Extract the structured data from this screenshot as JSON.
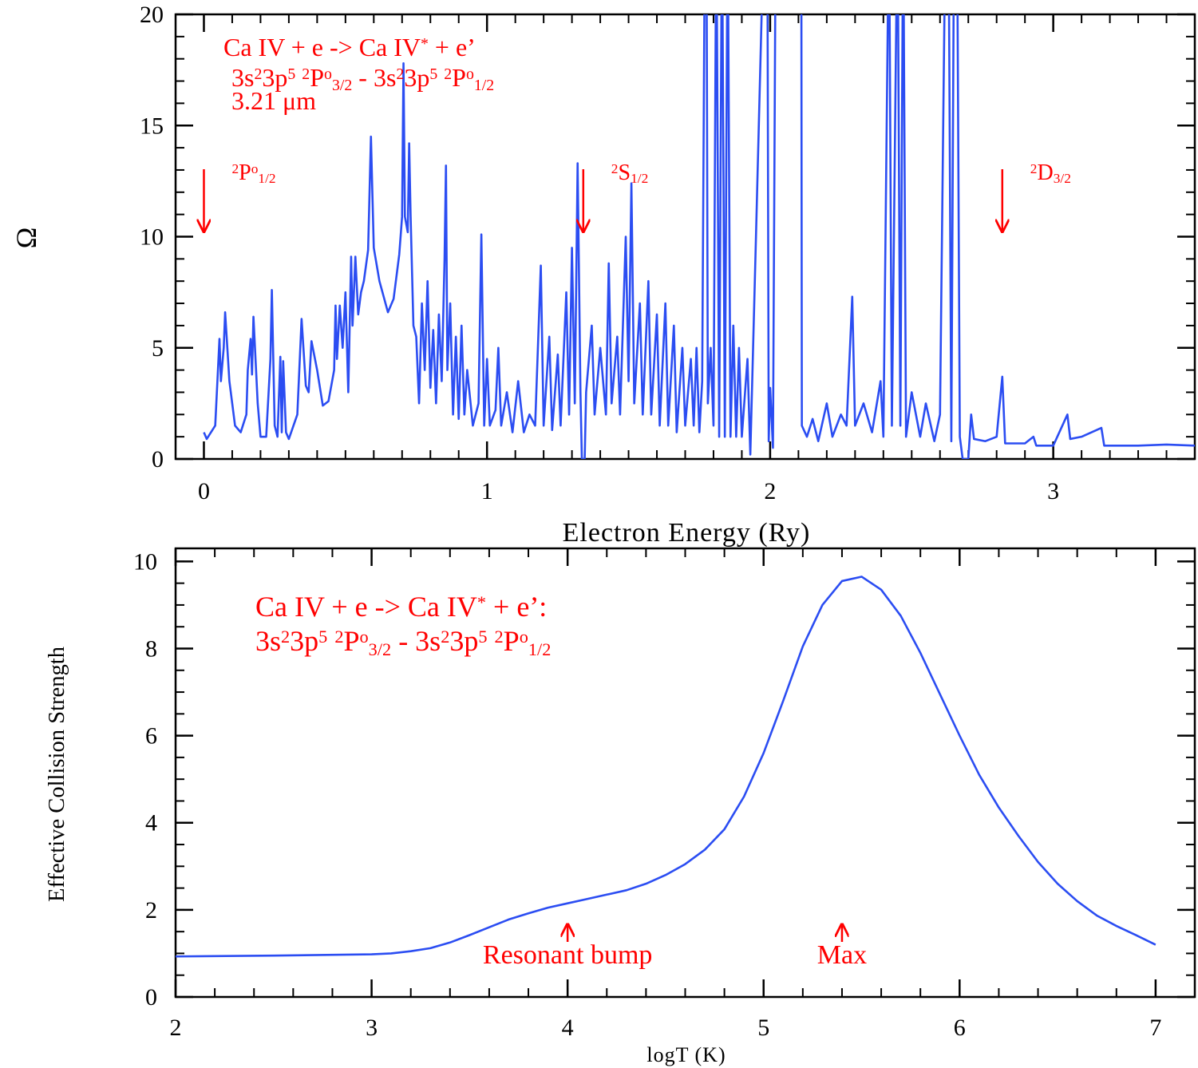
{
  "chart_data": [
    {
      "type": "line",
      "xlabel": "Electron Energy (Ry)",
      "ylabel": "Ω",
      "xlim": [
        -0.1,
        3.5
      ],
      "xticks": [
        0,
        1,
        2,
        3
      ],
      "minor_xtick_step": 0.1,
      "ylim": [
        0,
        20
      ],
      "yticks": [
        0,
        5,
        10,
        15,
        20
      ],
      "minor_ytick_step": 1,
      "color": "#2b4df2",
      "x": [
        0,
        0.01,
        0.04,
        0.055,
        0.06,
        0.07,
        0.075,
        0.09,
        0.11,
        0.13,
        0.15,
        0.155,
        0.165,
        0.17,
        0.175,
        0.19,
        0.2,
        0.22,
        0.235,
        0.24,
        0.25,
        0.26,
        0.27,
        0.275,
        0.28,
        0.29,
        0.3,
        0.33,
        0.345,
        0.36,
        0.37,
        0.38,
        0.4,
        0.42,
        0.44,
        0.46,
        0.465,
        0.47,
        0.48,
        0.49,
        0.5,
        0.51,
        0.52,
        0.525,
        0.535,
        0.545,
        0.555,
        0.565,
        0.58,
        0.59,
        0.6,
        0.62,
        0.65,
        0.67,
        0.69,
        0.7,
        0.705,
        0.71,
        0.72,
        0.725,
        0.73,
        0.74,
        0.75,
        0.76,
        0.77,
        0.78,
        0.79,
        0.8,
        0.81,
        0.82,
        0.83,
        0.84,
        0.85,
        0.855,
        0.86,
        0.87,
        0.88,
        0.89,
        0.9,
        0.91,
        0.92,
        0.93,
        0.95,
        0.97,
        0.98,
        0.99,
        1.0,
        1.01,
        1.03,
        1.04,
        1.05,
        1.07,
        1.09,
        1.11,
        1.13,
        1.15,
        1.17,
        1.19,
        1.2,
        1.22,
        1.23,
        1.25,
        1.26,
        1.28,
        1.29,
        1.3,
        1.31,
        1.32,
        1.33,
        1.335,
        1.345,
        1.35,
        1.37,
        1.38,
        1.4,
        1.42,
        1.43,
        1.44,
        1.46,
        1.47,
        1.49,
        1.5,
        1.51,
        1.52,
        1.54,
        1.55,
        1.57,
        1.58,
        1.6,
        1.61,
        1.63,
        1.64,
        1.66,
        1.67,
        1.69,
        1.7,
        1.72,
        1.73,
        1.74,
        1.75,
        1.76,
        1.77,
        1.775,
        1.78,
        1.79,
        1.8,
        1.81,
        1.82,
        1.83,
        1.84,
        1.85,
        1.86,
        1.87,
        1.88,
        1.89,
        1.9,
        1.92,
        1.93,
        1.95,
        1.98,
        1.99,
        1.995,
        2.0,
        2.01,
        2.02,
        2.11,
        2.112,
        2.13,
        2.15,
        2.17,
        2.2,
        2.22,
        2.25,
        2.27,
        2.29,
        2.3,
        2.33,
        2.36,
        2.39,
        2.4,
        2.42,
        2.43,
        2.45,
        2.46,
        2.47,
        2.48,
        2.5,
        2.53,
        2.55,
        2.58,
        2.6,
        2.62,
        2.63,
        2.64,
        2.65,
        2.66,
        2.67,
        2.68,
        2.7,
        2.71,
        2.72,
        2.76,
        2.8,
        2.82,
        2.83,
        2.9,
        2.93,
        2.94,
        3.0,
        3.05,
        3.06,
        3.1,
        3.17,
        3.18,
        3.3,
        3.4,
        3.5
      ],
      "values": [
        1.2,
        0.9,
        1.5,
        5.4,
        3.5,
        5.0,
        6.6,
        3.5,
        1.5,
        1.2,
        2.0,
        4.0,
        5.4,
        3.8,
        6.4,
        2.5,
        1.0,
        1.0,
        4.5,
        7.6,
        1.5,
        1.0,
        4.6,
        1.2,
        4.4,
        1.2,
        0.9,
        2.0,
        6.3,
        3.3,
        3.0,
        5.3,
        4.0,
        2.4,
        2.6,
        4.0,
        6.9,
        4.5,
        6.9,
        5.0,
        7.5,
        3.0,
        9.1,
        6.0,
        9.1,
        6.5,
        7.5,
        8.0,
        9.4,
        14.5,
        9.5,
        8.0,
        6.6,
        7.2,
        9.2,
        10.9,
        17.8,
        10.9,
        10.2,
        14.2,
        11.0,
        6.0,
        5.5,
        2.5,
        7.0,
        4.0,
        8.0,
        3.2,
        5.8,
        2.5,
        6.5,
        3.5,
        9.0,
        13.2,
        4.0,
        7.0,
        2.0,
        5.5,
        1.8,
        6.0,
        2.0,
        4.0,
        1.5,
        2.5,
        10.1,
        1.5,
        4.5,
        1.5,
        2.2,
        5.0,
        1.5,
        3.0,
        1.2,
        3.5,
        1.2,
        2.0,
        1.5,
        8.7,
        1.5,
        5.5,
        1.3,
        4.7,
        1.5,
        7.5,
        2.0,
        9.5,
        2.5,
        13.3,
        3.0,
        0,
        0,
        3.0,
        6.0,
        2.0,
        5.0,
        2.0,
        8.8,
        2.5,
        5.5,
        2.0,
        10.0,
        3.5,
        12.4,
        2.5,
        7.0,
        2.0,
        8.0,
        2.0,
        6.5,
        1.5,
        7.0,
        1.5,
        6.0,
        1.2,
        5.0,
        1.5,
        4.5,
        1.5,
        5.0,
        1.2,
        3.5,
        25,
        25,
        2.5,
        5.0,
        1.5,
        25,
        1.0,
        25,
        1.0,
        25,
        1.0,
        6.0,
        1.0,
        5.0,
        1.0,
        4.5,
        0.2,
        10,
        25,
        25,
        0.8,
        3.2,
        0.5,
        25,
        25,
        1.5,
        1.0,
        1.8,
        0.8,
        2.5,
        1.0,
        2.0,
        1.5,
        7.3,
        1.5,
        2.5,
        1.2,
        3.5,
        1.0,
        25,
        1.5,
        25,
        1.5,
        25,
        1.0,
        3.0,
        1.0,
        2.5,
        0.8,
        2.0,
        25,
        25,
        0.8,
        25,
        25,
        1.0,
        0,
        0,
        2.0,
        0.9,
        0.8,
        1.0,
        3.7,
        0.7,
        0.7,
        1.0,
        0.6,
        0.6,
        2.0,
        0.9,
        1.0,
        1.4,
        0.6,
        0.6,
        0.65,
        0.6
      ],
      "annotations": [
        {
          "segments": [
            {
              "text": "Ca IV + e -> Ca IV"
            },
            {
              "text": "*",
              "style": "sup"
            },
            {
              "text": " + e’"
            }
          ]
        },
        {
          "segments": [
            {
              "text": "3s"
            },
            {
              "text": "2",
              "style": "sup"
            },
            {
              "text": "3p"
            },
            {
              "text": "5",
              "style": "sup"
            },
            {
              "text": " "
            },
            {
              "text": "2",
              "style": "sup"
            },
            {
              "text": "P"
            },
            {
              "text": "o",
              "style": "sup"
            },
            {
              "text": "3/2",
              "style": "sub"
            },
            {
              "text": " - 3s"
            },
            {
              "text": "2",
              "style": "sup"
            },
            {
              "text": "3p"
            },
            {
              "text": "5",
              "style": "sup"
            },
            {
              "text": " "
            },
            {
              "text": "2",
              "style": "sup"
            },
            {
              "text": "P"
            },
            {
              "text": "o",
              "style": "sup"
            },
            {
              "text": "1/2",
              "style": "sub"
            }
          ]
        },
        {
          "segments": [
            {
              "text": "3.21 μm"
            }
          ]
        }
      ],
      "markers": [
        {
          "x": 0,
          "segments": [
            {
              "text": "2",
              "style": "sup"
            },
            {
              "text": "P"
            },
            {
              "text": "o",
              "style": "sup"
            },
            {
              "text": "1/2",
              "style": "sub"
            }
          ]
        },
        {
          "x": 1.34,
          "segments": [
            {
              "text": "2",
              "style": "sup"
            },
            {
              "text": "S"
            },
            {
              "text": "1/2",
              "style": "sub"
            }
          ]
        },
        {
          "x": 2.82,
          "segments": [
            {
              "text": "2",
              "style": "sup"
            },
            {
              "text": "D"
            },
            {
              "text": "3/2",
              "style": "sub"
            }
          ]
        }
      ]
    },
    {
      "type": "line",
      "xlabel": "logT (K)",
      "ylabel": "Effective Collision Strength",
      "xlim": [
        2,
        7.2
      ],
      "xticks": [
        2,
        3,
        4,
        5,
        6,
        7
      ],
      "minor_xtick_step": 0.2,
      "ylim": [
        0,
        10.3
      ],
      "yticks": [
        0,
        2,
        4,
        6,
        8,
        10
      ],
      "minor_ytick_step": 0.5,
      "color": "#2b4df2",
      "x": [
        2,
        2.5,
        3,
        3.1,
        3.2,
        3.3,
        3.4,
        3.5,
        3.6,
        3.7,
        3.8,
        3.9,
        4.0,
        4.1,
        4.2,
        4.3,
        4.4,
        4.5,
        4.6,
        4.7,
        4.8,
        4.9,
        5.0,
        5.1,
        5.2,
        5.3,
        5.4,
        5.5,
        5.6,
        5.7,
        5.8,
        5.9,
        6.0,
        6.1,
        6.2,
        6.3,
        6.4,
        6.5,
        6.6,
        6.7,
        6.8,
        6.9,
        7.0
      ],
      "values": [
        0.93,
        0.95,
        0.98,
        1.0,
        1.05,
        1.12,
        1.25,
        1.42,
        1.6,
        1.78,
        1.92,
        2.05,
        2.15,
        2.25,
        2.35,
        2.45,
        2.6,
        2.8,
        3.05,
        3.38,
        3.85,
        4.6,
        5.6,
        6.8,
        8.05,
        9.0,
        9.55,
        9.65,
        9.35,
        8.75,
        7.9,
        6.95,
        6.0,
        5.1,
        4.35,
        3.7,
        3.1,
        2.6,
        2.2,
        1.87,
        1.63,
        1.42,
        1.2
      ],
      "annotations": [
        {
          "segments": [
            {
              "text": "Ca IV + e -> Ca IV"
            },
            {
              "text": "*",
              "style": "sup"
            },
            {
              "text": " + e’:"
            }
          ]
        },
        {
          "segments": [
            {
              "text": "3s"
            },
            {
              "text": "2",
              "style": "sup"
            },
            {
              "text": "3p"
            },
            {
              "text": "5",
              "style": "sup"
            },
            {
              "text": " "
            },
            {
              "text": "2",
              "style": "sup"
            },
            {
              "text": "P"
            },
            {
              "text": "o",
              "style": "sup"
            },
            {
              "text": "3/2",
              "style": "sub"
            },
            {
              "text": " - 3s"
            },
            {
              "text": "2",
              "style": "sup"
            },
            {
              "text": "3p"
            },
            {
              "text": "5",
              "style": "sup"
            },
            {
              "text": " "
            },
            {
              "text": "2",
              "style": "sup"
            },
            {
              "text": "P"
            },
            {
              "text": "o",
              "style": "sup"
            },
            {
              "text": "1/2",
              "style": "sub"
            }
          ]
        }
      ],
      "markers": [
        {
          "x": 4.0,
          "segments": [
            {
              "text": "Resonant bump"
            }
          ]
        },
        {
          "x": 5.4,
          "segments": [
            {
              "text": "Max"
            }
          ]
        }
      ]
    }
  ]
}
